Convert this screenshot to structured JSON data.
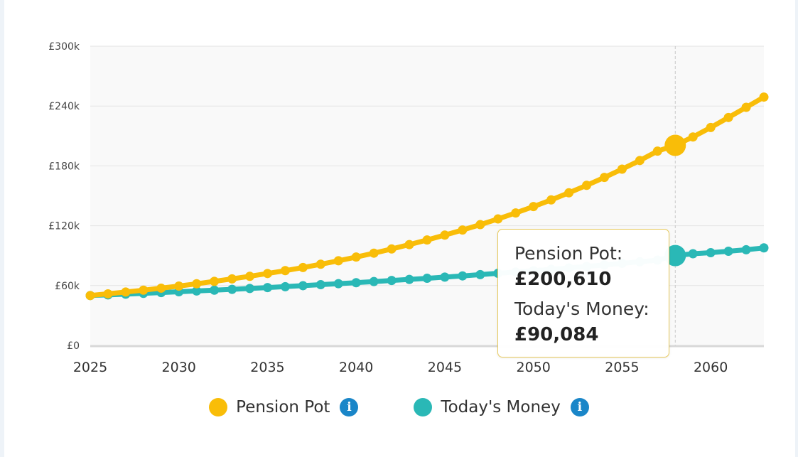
{
  "chart_data": {
    "type": "line",
    "title": "",
    "xlabel": "",
    "ylabel": "",
    "x": [
      2025,
      2026,
      2027,
      2028,
      2029,
      2030,
      2031,
      2032,
      2033,
      2034,
      2035,
      2036,
      2037,
      2038,
      2039,
      2040,
      2041,
      2042,
      2043,
      2044,
      2045,
      2046,
      2047,
      2048,
      2049,
      2050,
      2051,
      2052,
      2053,
      2054,
      2055,
      2056,
      2057,
      2058,
      2059,
      2060,
      2061,
      2062,
      2063
    ],
    "xlim": [
      2025,
      2063
    ],
    "x_ticks": [
      2025,
      2030,
      2035,
      2040,
      2045,
      2050,
      2055,
      2060
    ],
    "ylim": [
      0,
      300000
    ],
    "y_ticks": [
      0,
      60000,
      120000,
      180000,
      240000,
      300000
    ],
    "y_tick_labels": [
      "£0",
      "£60k",
      "£120k",
      "£180k",
      "£240k",
      "£300k"
    ],
    "grid": true,
    "legend_position": "bottom",
    "series": [
      {
        "name": "Pension Pot",
        "color": "#f9bd08",
        "values": [
          50000,
          51700,
          53500,
          55400,
          57400,
          59500,
          61800,
          64200,
          66700,
          69300,
          72100,
          75000,
          78100,
          81400,
          84900,
          88600,
          92500,
          96700,
          101100,
          105700,
          110600,
          115700,
          121100,
          126800,
          132800,
          139200,
          145900,
          153000,
          160500,
          168400,
          176700,
          185400,
          194800,
          200610,
          209000,
          218500,
          228500,
          238700,
          249000
        ]
      },
      {
        "name": "Today's Money",
        "color": "#2ab8b6",
        "values": [
          50000,
          50700,
          51400,
          52200,
          53000,
          53800,
          54600,
          55400,
          56200,
          57100,
          58000,
          58900,
          59900,
          60900,
          61900,
          62900,
          64000,
          65100,
          66200,
          67300,
          68500,
          69700,
          71000,
          72300,
          73600,
          74900,
          76300,
          77700,
          79200,
          80700,
          82300,
          83900,
          85500,
          90084,
          91900,
          93000,
          94400,
          95900,
          97800
        ]
      }
    ],
    "highlight_index": 33
  },
  "tooltip": {
    "pension_label": "Pension Pot:",
    "pension_value": "£200,610",
    "today_label": "Today's Money:",
    "today_value": "£90,084"
  },
  "legend": {
    "items": [
      {
        "label": "Pension Pot",
        "color": "#f9bd08",
        "info_icon": "info-icon",
        "info_glyph": "i"
      },
      {
        "label": "Today's Money",
        "color": "#2ab8b6",
        "info_icon": "info-icon",
        "info_glyph": "i"
      }
    ]
  }
}
